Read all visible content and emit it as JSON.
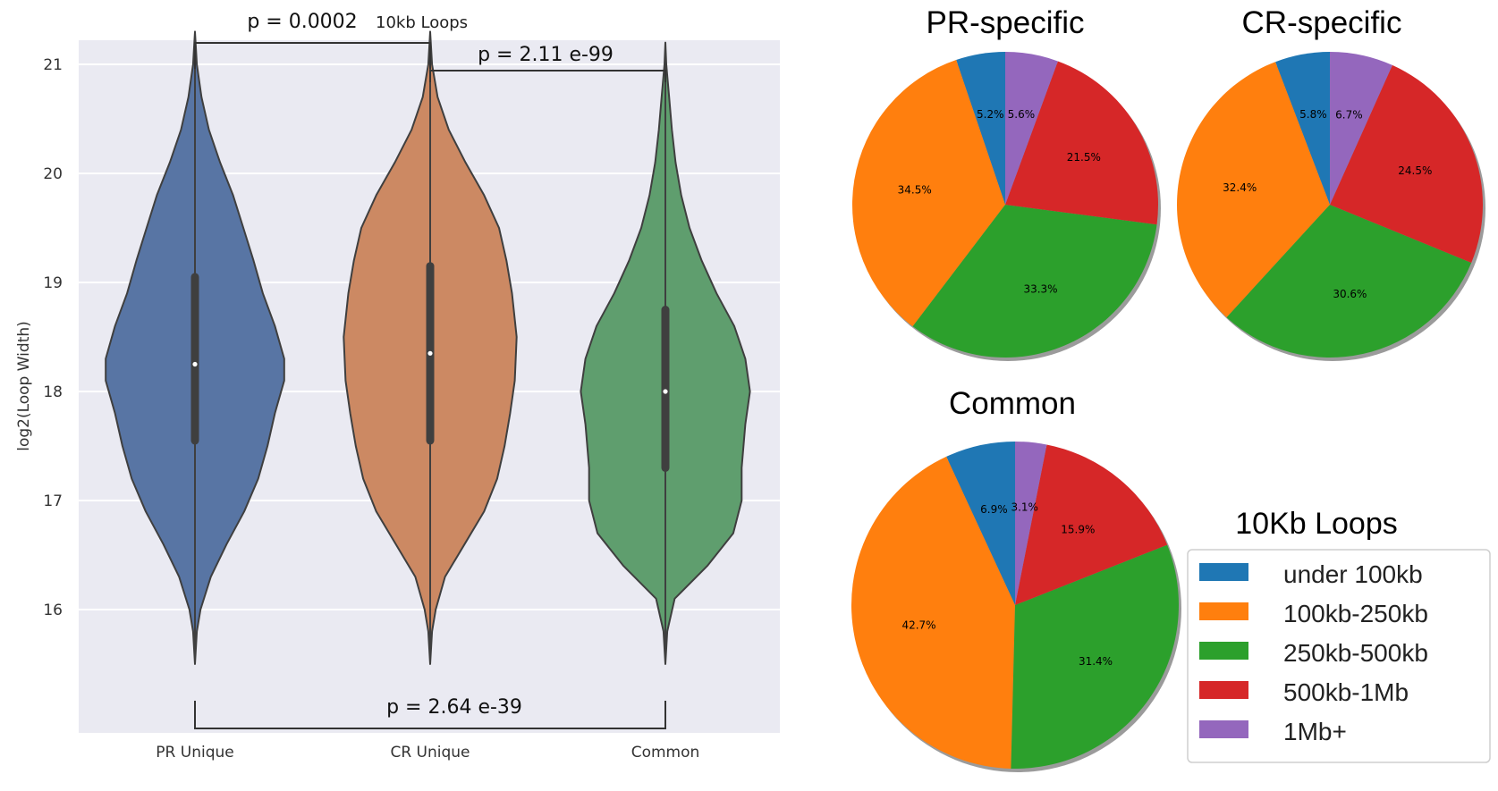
{
  "chart_data": [
    {
      "type": "violin",
      "subtitle": "10kb Loops",
      "ylabel": "log2(Loop Width)",
      "ylim": [
        15.25,
        21.8
      ],
      "yticks": [
        16,
        17,
        18,
        19,
        20,
        21
      ],
      "grid": true,
      "categories": [
        "PR Unique",
        "CR Unique",
        "Common"
      ],
      "series": [
        {
          "category": "PR Unique",
          "color": "#5875a4",
          "min": 15.5,
          "max": 21.3,
          "q1": 17.55,
          "median": 18.25,
          "q3": 19.05,
          "profile": [
            [
              15.5,
              0.0
            ],
            [
              15.8,
              0.02
            ],
            [
              16.0,
              0.06
            ],
            [
              16.3,
              0.17
            ],
            [
              16.6,
              0.34
            ],
            [
              16.9,
              0.53
            ],
            [
              17.2,
              0.68
            ],
            [
              17.5,
              0.78
            ],
            [
              17.8,
              0.86
            ],
            [
              18.1,
              0.96
            ],
            [
              18.3,
              0.96
            ],
            [
              18.6,
              0.86
            ],
            [
              18.9,
              0.73
            ],
            [
              19.2,
              0.63
            ],
            [
              19.5,
              0.52
            ],
            [
              19.8,
              0.41
            ],
            [
              20.1,
              0.27
            ],
            [
              20.4,
              0.15
            ],
            [
              20.7,
              0.07
            ],
            [
              21.0,
              0.02
            ],
            [
              21.3,
              0.0
            ]
          ]
        },
        {
          "category": "CR Unique",
          "color": "#cc8963",
          "min": 15.5,
          "max": 21.3,
          "q1": 17.55,
          "median": 18.35,
          "q3": 19.15,
          "profile": [
            [
              15.5,
              0.0
            ],
            [
              15.8,
              0.02
            ],
            [
              16.0,
              0.06
            ],
            [
              16.3,
              0.16
            ],
            [
              16.6,
              0.37
            ],
            [
              16.9,
              0.58
            ],
            [
              17.2,
              0.72
            ],
            [
              17.5,
              0.8
            ],
            [
              17.8,
              0.86
            ],
            [
              18.1,
              0.91
            ],
            [
              18.5,
              0.93
            ],
            [
              18.9,
              0.88
            ],
            [
              19.2,
              0.82
            ],
            [
              19.5,
              0.74
            ],
            [
              19.8,
              0.58
            ],
            [
              20.1,
              0.38
            ],
            [
              20.4,
              0.2
            ],
            [
              20.7,
              0.08
            ],
            [
              21.0,
              0.02
            ],
            [
              21.3,
              0.0
            ]
          ]
        },
        {
          "category": "Common",
          "color": "#5f9e6e",
          "min": 15.5,
          "max": 21.2,
          "q1": 17.3,
          "median": 18.0,
          "q3": 18.75,
          "profile": [
            [
              15.5,
              0.0
            ],
            [
              15.8,
              0.02
            ],
            [
              16.1,
              0.1
            ],
            [
              16.4,
              0.45
            ],
            [
              16.7,
              0.73
            ],
            [
              17.0,
              0.82
            ],
            [
              17.3,
              0.82
            ],
            [
              17.7,
              0.86
            ],
            [
              18.0,
              0.91
            ],
            [
              18.3,
              0.86
            ],
            [
              18.6,
              0.74
            ],
            [
              18.9,
              0.55
            ],
            [
              19.2,
              0.39
            ],
            [
              19.5,
              0.26
            ],
            [
              19.8,
              0.17
            ],
            [
              20.1,
              0.11
            ],
            [
              20.4,
              0.07
            ],
            [
              20.7,
              0.04
            ],
            [
              21.0,
              0.01
            ],
            [
              21.2,
              0.0
            ]
          ]
        }
      ],
      "annotations": [
        {
          "between": [
            "PR Unique",
            "CR Unique"
          ],
          "text": "p = 0.0002"
        },
        {
          "between": [
            "CR Unique",
            "Common"
          ],
          "text": "p = 2.11 e-99"
        },
        {
          "between": [
            "PR Unique",
            "Common"
          ],
          "text": "p = 2.64 e-39"
        }
      ]
    },
    {
      "type": "pie",
      "title": "PR-specific",
      "slices": [
        {
          "label": "under 100kb",
          "value": 5.2,
          "color": "#1f77b4"
        },
        {
          "label": "100kb-250kb",
          "value": 34.5,
          "color": "#ff7f0e"
        },
        {
          "label": "250kb-500kb",
          "value": 33.3,
          "color": "#2ca02c"
        },
        {
          "label": "500kb-1Mb",
          "value": 21.5,
          "color": "#d62728"
        },
        {
          "label": "1Mb+",
          "value": 5.6,
          "color": "#9467bd"
        }
      ]
    },
    {
      "type": "pie",
      "title": "CR-specific",
      "slices": [
        {
          "label": "under 100kb",
          "value": 5.8,
          "color": "#1f77b4"
        },
        {
          "label": "100kb-250kb",
          "value": 32.4,
          "color": "#ff7f0e"
        },
        {
          "label": "250kb-500kb",
          "value": 30.6,
          "color": "#2ca02c"
        },
        {
          "label": "500kb-1Mb",
          "value": 24.5,
          "color": "#d62728"
        },
        {
          "label": "1Mb+",
          "value": 6.7,
          "color": "#9467bd"
        }
      ]
    },
    {
      "type": "pie",
      "title": "Common",
      "slices": [
        {
          "label": "under 100kb",
          "value": 6.9,
          "color": "#1f77b4"
        },
        {
          "label": "100kb-250kb",
          "value": 42.7,
          "color": "#ff7f0e"
        },
        {
          "label": "250kb-500kb",
          "value": 31.4,
          "color": "#2ca02c"
        },
        {
          "label": "500kb-1Mb",
          "value": 15.9,
          "color": "#d62728"
        },
        {
          "label": "1Mb+",
          "value": 3.1,
          "color": "#9467bd"
        }
      ]
    }
  ],
  "legend": {
    "title": "10Kb Loops",
    "items": [
      {
        "label": "under 100kb",
        "color": "#1f77b4"
      },
      {
        "label": "100kb-250kb",
        "color": "#ff7f0e"
      },
      {
        "label": "250kb-500kb",
        "color": "#2ca02c"
      },
      {
        "label": "500kb-1Mb",
        "color": "#d62728"
      },
      {
        "label": "1Mb+",
        "color": "#9467bd"
      }
    ]
  }
}
